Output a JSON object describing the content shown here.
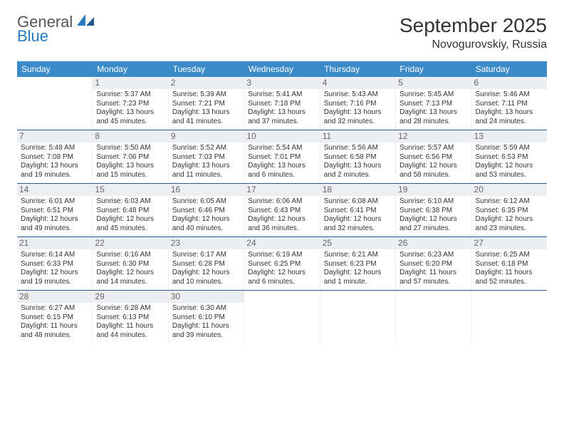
{
  "logo": {
    "line1": "General",
    "line2": "Blue"
  },
  "title": "September 2025",
  "location": "Novogurovskiy, Russia",
  "colors": {
    "header_bg": "#3b8bc9",
    "header_text": "#ffffff",
    "daynum_bg": "#eceff1",
    "daynum_text": "#666666",
    "row_border": "#2a5a8a",
    "body_text": "#333333",
    "logo_gray": "#555555",
    "logo_blue": "#2a7ac0"
  },
  "weekdays": [
    "Sunday",
    "Monday",
    "Tuesday",
    "Wednesday",
    "Thursday",
    "Friday",
    "Saturday"
  ],
  "weeks": [
    [
      {
        "blank": true
      },
      {
        "n": "1",
        "sr": "Sunrise: 5:37 AM",
        "ss": "Sunset: 7:23 PM",
        "dl": "Daylight: 13 hours and 45 minutes."
      },
      {
        "n": "2",
        "sr": "Sunrise: 5:39 AM",
        "ss": "Sunset: 7:21 PM",
        "dl": "Daylight: 13 hours and 41 minutes."
      },
      {
        "n": "3",
        "sr": "Sunrise: 5:41 AM",
        "ss": "Sunset: 7:18 PM",
        "dl": "Daylight: 13 hours and 37 minutes."
      },
      {
        "n": "4",
        "sr": "Sunrise: 5:43 AM",
        "ss": "Sunset: 7:16 PM",
        "dl": "Daylight: 13 hours and 32 minutes."
      },
      {
        "n": "5",
        "sr": "Sunrise: 5:45 AM",
        "ss": "Sunset: 7:13 PM",
        "dl": "Daylight: 13 hours and 28 minutes."
      },
      {
        "n": "6",
        "sr": "Sunrise: 5:46 AM",
        "ss": "Sunset: 7:11 PM",
        "dl": "Daylight: 13 hours and 24 minutes."
      }
    ],
    [
      {
        "n": "7",
        "sr": "Sunrise: 5:48 AM",
        "ss": "Sunset: 7:08 PM",
        "dl": "Daylight: 13 hours and 19 minutes."
      },
      {
        "n": "8",
        "sr": "Sunrise: 5:50 AM",
        "ss": "Sunset: 7:06 PM",
        "dl": "Daylight: 13 hours and 15 minutes."
      },
      {
        "n": "9",
        "sr": "Sunrise: 5:52 AM",
        "ss": "Sunset: 7:03 PM",
        "dl": "Daylight: 13 hours and 11 minutes."
      },
      {
        "n": "10",
        "sr": "Sunrise: 5:54 AM",
        "ss": "Sunset: 7:01 PM",
        "dl": "Daylight: 13 hours and 6 minutes."
      },
      {
        "n": "11",
        "sr": "Sunrise: 5:56 AM",
        "ss": "Sunset: 6:58 PM",
        "dl": "Daylight: 13 hours and 2 minutes."
      },
      {
        "n": "12",
        "sr": "Sunrise: 5:57 AM",
        "ss": "Sunset: 6:56 PM",
        "dl": "Daylight: 12 hours and 58 minutes."
      },
      {
        "n": "13",
        "sr": "Sunrise: 5:59 AM",
        "ss": "Sunset: 6:53 PM",
        "dl": "Daylight: 12 hours and 53 minutes."
      }
    ],
    [
      {
        "n": "14",
        "sr": "Sunrise: 6:01 AM",
        "ss": "Sunset: 6:51 PM",
        "dl": "Daylight: 12 hours and 49 minutes."
      },
      {
        "n": "15",
        "sr": "Sunrise: 6:03 AM",
        "ss": "Sunset: 6:48 PM",
        "dl": "Daylight: 12 hours and 45 minutes."
      },
      {
        "n": "16",
        "sr": "Sunrise: 6:05 AM",
        "ss": "Sunset: 6:46 PM",
        "dl": "Daylight: 12 hours and 40 minutes."
      },
      {
        "n": "17",
        "sr": "Sunrise: 6:06 AM",
        "ss": "Sunset: 6:43 PM",
        "dl": "Daylight: 12 hours and 36 minutes."
      },
      {
        "n": "18",
        "sr": "Sunrise: 6:08 AM",
        "ss": "Sunset: 6:41 PM",
        "dl": "Daylight: 12 hours and 32 minutes."
      },
      {
        "n": "19",
        "sr": "Sunrise: 6:10 AM",
        "ss": "Sunset: 6:38 PM",
        "dl": "Daylight: 12 hours and 27 minutes."
      },
      {
        "n": "20",
        "sr": "Sunrise: 6:12 AM",
        "ss": "Sunset: 6:35 PM",
        "dl": "Daylight: 12 hours and 23 minutes."
      }
    ],
    [
      {
        "n": "21",
        "sr": "Sunrise: 6:14 AM",
        "ss": "Sunset: 6:33 PM",
        "dl": "Daylight: 12 hours and 19 minutes."
      },
      {
        "n": "22",
        "sr": "Sunrise: 6:16 AM",
        "ss": "Sunset: 6:30 PM",
        "dl": "Daylight: 12 hours and 14 minutes."
      },
      {
        "n": "23",
        "sr": "Sunrise: 6:17 AM",
        "ss": "Sunset: 6:28 PM",
        "dl": "Daylight: 12 hours and 10 minutes."
      },
      {
        "n": "24",
        "sr": "Sunrise: 6:19 AM",
        "ss": "Sunset: 6:25 PM",
        "dl": "Daylight: 12 hours and 6 minutes."
      },
      {
        "n": "25",
        "sr": "Sunrise: 6:21 AM",
        "ss": "Sunset: 6:23 PM",
        "dl": "Daylight: 12 hours and 1 minute."
      },
      {
        "n": "26",
        "sr": "Sunrise: 6:23 AM",
        "ss": "Sunset: 6:20 PM",
        "dl": "Daylight: 11 hours and 57 minutes."
      },
      {
        "n": "27",
        "sr": "Sunrise: 6:25 AM",
        "ss": "Sunset: 6:18 PM",
        "dl": "Daylight: 11 hours and 52 minutes."
      }
    ],
    [
      {
        "n": "28",
        "sr": "Sunrise: 6:27 AM",
        "ss": "Sunset: 6:15 PM",
        "dl": "Daylight: 11 hours and 48 minutes."
      },
      {
        "n": "29",
        "sr": "Sunrise: 6:28 AM",
        "ss": "Sunset: 6:13 PM",
        "dl": "Daylight: 11 hours and 44 minutes."
      },
      {
        "n": "30",
        "sr": "Sunrise: 6:30 AM",
        "ss": "Sunset: 6:10 PM",
        "dl": "Daylight: 11 hours and 39 minutes."
      },
      {
        "blank": true
      },
      {
        "blank": true
      },
      {
        "blank": true
      },
      {
        "blank": true
      }
    ]
  ]
}
